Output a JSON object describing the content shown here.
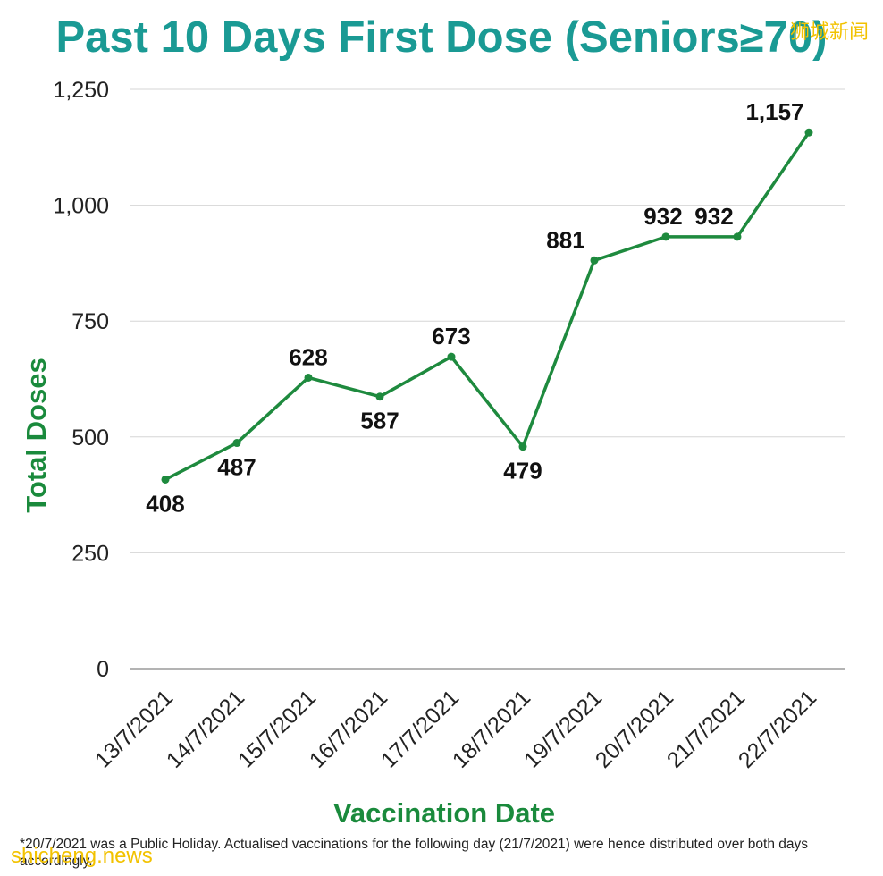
{
  "chart_data": {
    "type": "line",
    "title": "Past 10 Days First Dose (Seniors≥70)",
    "xlabel": "Vaccination Date",
    "ylabel": "Total Doses",
    "categories": [
      "13/7/2021",
      "14/7/2021",
      "15/7/2021",
      "16/7/2021",
      "17/7/2021",
      "18/7/2021",
      "19/7/2021",
      "20/7/2021",
      "21/7/2021",
      "22/7/2021"
    ],
    "series": [
      {
        "values": [
          408,
          487,
          628,
          587,
          673,
          479,
          881,
          932,
          932,
          1157
        ]
      }
    ],
    "data_labels": [
      "408",
      "487",
      "628",
      "587",
      "673",
      "479",
      "881",
      "932",
      "932",
      "1,157"
    ],
    "yticks": [
      {
        "value": 0,
        "label": "0"
      },
      {
        "value": 250,
        "label": "250"
      },
      {
        "value": 500,
        "label": "500"
      },
      {
        "value": 750,
        "label": "750"
      },
      {
        "value": 1000,
        "label": "1,000"
      },
      {
        "value": 1250,
        "label": "1,250"
      }
    ],
    "ylim": [
      0,
      1250
    ],
    "grid": true,
    "line_color": "#1e8a3e",
    "footnote": "*20/7/2021 was a Public Holiday. Actualised vaccinations for the following day (21/7/2021) were hence distributed over both days accordingly."
  },
  "watermarks": {
    "top_right": "狮城新闻",
    "bottom_left": "shicheng.news"
  },
  "colors": {
    "title": "#1a9a94",
    "axis_title": "#1a8a3c",
    "watermark": "#f2c200"
  }
}
